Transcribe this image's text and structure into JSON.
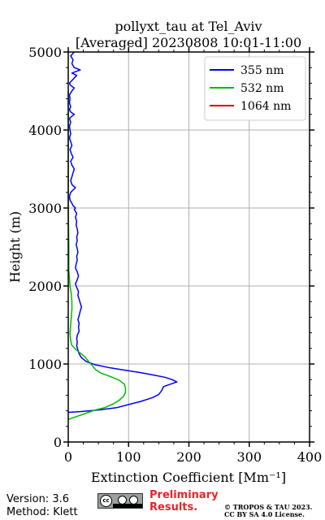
{
  "chart_data": {
    "type": "line",
    "title": "pollyxt_tau at Tel_Aviv",
    "subtitle": "[Averaged] 20230808 10:01-11:00",
    "xlabel": "Extinction Coefficient [Mm⁻¹]",
    "ylabel": "Height (m)",
    "xlim": [
      0,
      400
    ],
    "ylim": [
      0,
      5000
    ],
    "xticks": [
      0,
      100,
      200,
      300,
      400
    ],
    "yticks": [
      0,
      1000,
      2000,
      3000,
      4000,
      5000
    ],
    "grid": true,
    "legend_position": "top-right",
    "series": [
      {
        "name": "355 nm",
        "color": "#0000ff",
        "points": [
          [
            0,
            380
          ],
          [
            20,
            390
          ],
          [
            50,
            410
          ],
          [
            80,
            440
          ],
          [
            100,
            480
          ],
          [
            120,
            520
          ],
          [
            140,
            570
          ],
          [
            150,
            610
          ],
          [
            155,
            660
          ],
          [
            158,
            710
          ],
          [
            165,
            730
          ],
          [
            180,
            770
          ],
          [
            172,
            800
          ],
          [
            160,
            830
          ],
          [
            140,
            860
          ],
          [
            120,
            890
          ],
          [
            95,
            920
          ],
          [
            70,
            950
          ],
          [
            45,
            990
          ],
          [
            30,
            1030
          ],
          [
            22,
            1080
          ],
          [
            18,
            1130
          ],
          [
            16,
            1180
          ],
          [
            14,
            1230
          ],
          [
            15,
            1280
          ],
          [
            14,
            1320
          ],
          [
            15,
            1370
          ],
          [
            18,
            1420
          ],
          [
            17,
            1470
          ],
          [
            18,
            1520
          ],
          [
            16,
            1570
          ],
          [
            18,
            1620
          ],
          [
            20,
            1680
          ],
          [
            22,
            1730
          ],
          [
            20,
            1780
          ],
          [
            18,
            1830
          ],
          [
            16,
            1880
          ],
          [
            17,
            1930
          ],
          [
            14,
            1980
          ],
          [
            12,
            2030
          ],
          [
            15,
            2080
          ],
          [
            17,
            2130
          ],
          [
            15,
            2180
          ],
          [
            12,
            2230
          ],
          [
            13,
            2280
          ],
          [
            15,
            2330
          ],
          [
            14,
            2380
          ],
          [
            16,
            2430
          ],
          [
            15,
            2480
          ],
          [
            13,
            2530
          ],
          [
            15,
            2580
          ],
          [
            14,
            2630
          ],
          [
            16,
            2680
          ],
          [
            15,
            2730
          ],
          [
            13,
            2780
          ],
          [
            14,
            2830
          ],
          [
            12,
            2880
          ],
          [
            14,
            2930
          ],
          [
            10,
            2980
          ],
          [
            12,
            3000
          ],
          [
            8,
            3030
          ],
          [
            6,
            3060
          ],
          [
            3,
            3100
          ],
          [
            2,
            3150
          ],
          [
            4,
            3200
          ],
          [
            8,
            3230
          ],
          [
            12,
            3260
          ],
          [
            6,
            3300
          ],
          [
            4,
            3350
          ],
          [
            6,
            3400
          ],
          [
            8,
            3450
          ],
          [
            10,
            3500
          ],
          [
            6,
            3550
          ],
          [
            4,
            3600
          ],
          [
            8,
            3650
          ],
          [
            5,
            3700
          ],
          [
            3,
            3750
          ],
          [
            6,
            3800
          ],
          [
            4,
            3850
          ],
          [
            2,
            3900
          ],
          [
            4,
            3950
          ],
          [
            3,
            4000
          ],
          [
            2,
            4050
          ],
          [
            4,
            4100
          ],
          [
            2,
            4150
          ],
          [
            10,
            4200
          ],
          [
            4,
            4230
          ],
          [
            2,
            4260
          ],
          [
            4,
            4300
          ],
          [
            2,
            4350
          ],
          [
            3,
            4400
          ],
          [
            2,
            4450
          ],
          [
            6,
            4500
          ],
          [
            10,
            4540
          ],
          [
            4,
            4570
          ],
          [
            2,
            4600
          ],
          [
            8,
            4650
          ],
          [
            14,
            4700
          ],
          [
            6,
            4730
          ],
          [
            20,
            4770
          ],
          [
            10,
            4800
          ],
          [
            6,
            4850
          ],
          [
            8,
            4900
          ],
          [
            4,
            4950
          ],
          [
            10,
            5000
          ]
        ]
      },
      {
        "name": "532 nm",
        "color": "#00bb00",
        "points": [
          [
            0,
            290
          ],
          [
            15,
            330
          ],
          [
            30,
            370
          ],
          [
            45,
            410
          ],
          [
            60,
            440
          ],
          [
            75,
            490
          ],
          [
            85,
            540
          ],
          [
            92,
            590
          ],
          [
            95,
            640
          ],
          [
            95,
            690
          ],
          [
            93,
            740
          ],
          [
            85,
            790
          ],
          [
            70,
            840
          ],
          [
            55,
            880
          ],
          [
            45,
            930
          ],
          [
            40,
            980
          ],
          [
            33,
            1040
          ],
          [
            28,
            1090
          ],
          [
            20,
            1140
          ],
          [
            12,
            1190
          ],
          [
            6,
            1240
          ],
          [
            4,
            1300
          ],
          [
            3,
            1400
          ],
          [
            4,
            1500
          ],
          [
            5,
            1600
          ],
          [
            6,
            1700
          ],
          [
            6,
            1800
          ],
          [
            5,
            1900
          ],
          [
            3,
            2000
          ],
          [
            2,
            2100
          ],
          [
            1,
            2200
          ],
          [
            1,
            2500
          ],
          [
            0,
            3000
          ],
          [
            0,
            4000
          ],
          [
            0,
            4500
          ]
        ]
      },
      {
        "name": "1064 nm",
        "color": "#dd0000",
        "points": []
      }
    ]
  },
  "footer": {
    "version_text": "Version: 3.6",
    "method_text": "Method: Klett",
    "license_badge_text": "cc",
    "preliminary_line1": "Preliminary",
    "preliminary_line2": "Results.",
    "copyright_line1": "© TROPOS & TAU 2023.",
    "copyright_line2": "CC BY SA 4.0 License."
  }
}
